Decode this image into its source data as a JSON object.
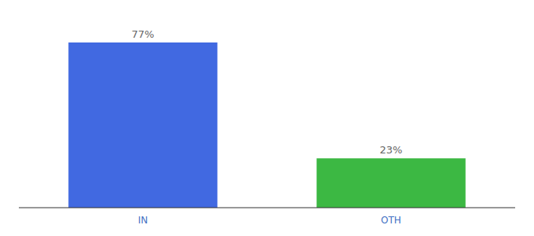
{
  "chart_data": {
    "type": "bar",
    "categories": [
      "IN",
      "OTH"
    ],
    "values": [
      77,
      23
    ],
    "value_labels": [
      "77%",
      "23%"
    ],
    "colors": [
      "#4169e1",
      "#3cb843"
    ],
    "ylim": [
      0,
      88
    ],
    "data_labels": true,
    "tick_labels": "x",
    "grid": false
  }
}
